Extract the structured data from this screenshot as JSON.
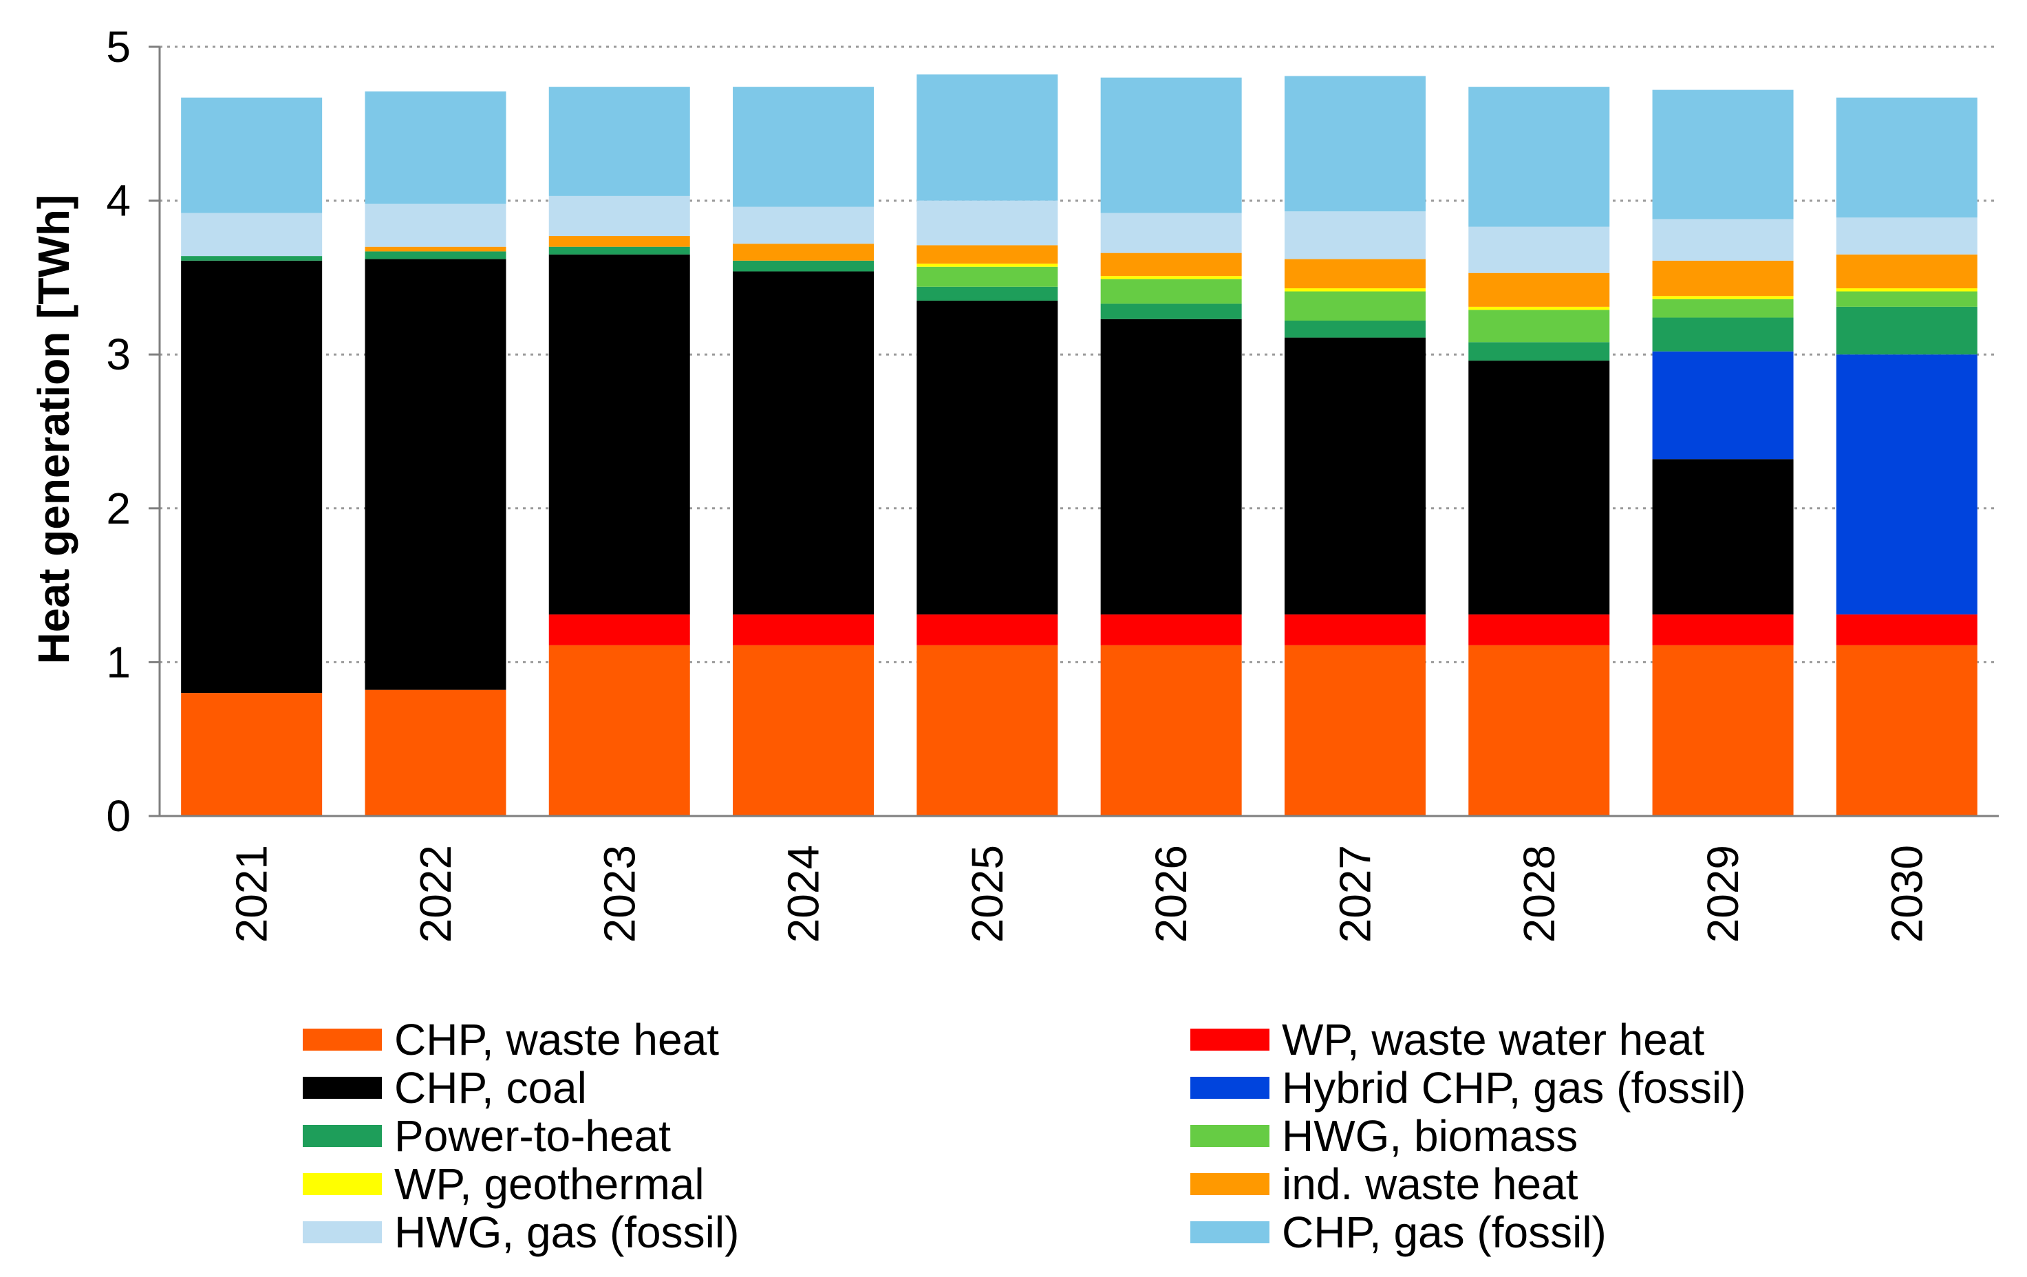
{
  "chart_data": {
    "type": "bar",
    "stacked": true,
    "title": "",
    "xlabel": "",
    "ylabel": "Heat generation [TWh]",
    "ylim": [
      0,
      5
    ],
    "yticks": [
      "0",
      "1",
      "2",
      "3",
      "4",
      "5"
    ],
    "grid": "horizontal dotted",
    "legend_position": "bottom",
    "categories": [
      "2021",
      "2022",
      "2023",
      "2024",
      "2025",
      "2026",
      "2027",
      "2028",
      "2029",
      "2030"
    ],
    "series": [
      {
        "name": "CHP, waste heat",
        "color": "#FF5A00",
        "values": [
          0.8,
          0.82,
          1.11,
          1.11,
          1.11,
          1.11,
          1.11,
          1.11,
          1.11,
          1.11
        ]
      },
      {
        "name": "WP, waste water heat",
        "color": "#FF0000",
        "values": [
          0,
          0,
          0.2,
          0.2,
          0.2,
          0.2,
          0.2,
          0.2,
          0.2,
          0.2
        ]
      },
      {
        "name": "CHP, coal",
        "color": "#000000",
        "values": [
          2.81,
          2.8,
          2.34,
          2.23,
          2.04,
          1.92,
          1.8,
          1.65,
          1.01,
          0
        ]
      },
      {
        "name": "Hybrid CHP, gas (fossil)",
        "color": "#0044DD",
        "values": [
          0,
          0,
          0,
          0,
          0,
          0,
          0,
          0,
          0.7,
          1.69
        ]
      },
      {
        "name": "Power-to-heat",
        "color": "#1E9E5A",
        "values": [
          0.03,
          0.05,
          0.05,
          0.07,
          0.09,
          0.1,
          0.11,
          0.12,
          0.22,
          0.31
        ]
      },
      {
        "name": "HWG, biomass",
        "color": "#66CC44",
        "values": [
          0,
          0,
          0,
          0,
          0.13,
          0.16,
          0.19,
          0.21,
          0.12,
          0.1
        ]
      },
      {
        "name": "WP, geothermal",
        "color": "#FFFF00",
        "values": [
          0,
          0,
          0,
          0,
          0.02,
          0.02,
          0.02,
          0.02,
          0.02,
          0.02
        ]
      },
      {
        "name": "ind. waste heat",
        "color": "#FF9900",
        "values": [
          0,
          0.03,
          0.07,
          0.11,
          0.12,
          0.15,
          0.19,
          0.22,
          0.23,
          0.22
        ]
      },
      {
        "name": "HWG, gas (fossil)",
        "color": "#BDDDF1",
        "values": [
          0.28,
          0.28,
          0.26,
          0.24,
          0.29,
          0.26,
          0.31,
          0.3,
          0.27,
          0.24
        ]
      },
      {
        "name": "CHP, gas (fossil)",
        "color": "#7EC8E8",
        "values": [
          0.75,
          0.73,
          0.71,
          0.78,
          0.82,
          0.88,
          0.88,
          0.91,
          0.84,
          0.78
        ]
      }
    ],
    "legend_order": [
      "CHP, waste heat",
      "WP, waste water heat",
      "CHP, coal",
      "Hybrid CHP, gas (fossil)",
      "Power-to-heat",
      "HWG, biomass",
      "WP, geothermal",
      "ind. waste heat",
      "HWG, gas (fossil)",
      "CHP, gas (fossil)"
    ]
  }
}
